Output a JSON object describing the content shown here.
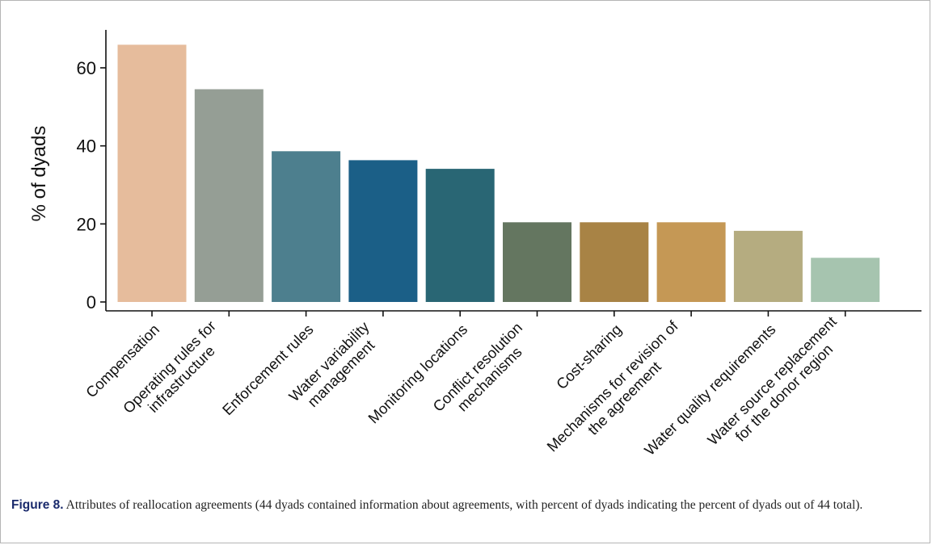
{
  "chart_data": {
    "type": "bar",
    "ylabel": "% of dyads",
    "xlabel": "",
    "ylim": [
      0,
      72
    ],
    "yticks": [
      0,
      20,
      40,
      60
    ],
    "grid": false,
    "categories": [
      [
        "Compensation"
      ],
      [
        "Operating rules for",
        "infrastructure"
      ],
      [
        "Enforcement rules"
      ],
      [
        "Water variability",
        "management"
      ],
      [
        "Monitoring locations"
      ],
      [
        "Conflict resolution",
        "mechanisms"
      ],
      [
        "Cost-sharing"
      ],
      [
        "Mechanisms for revision of",
        "the agreement"
      ],
      [
        "Water quality requirements"
      ],
      [
        "Water source replacement",
        "for the donor region"
      ]
    ],
    "values": [
      68.2,
      56.8,
      40.9,
      38.6,
      36.4,
      22.7,
      22.7,
      22.7,
      20.5,
      13.6
    ],
    "colors": [
      "#e6bc9c",
      "#959e95",
      "#4d7f8e",
      "#1b5f87",
      "#296674",
      "#647660",
      "#a88345",
      "#c59855",
      "#b5ac80",
      "#a6c4af"
    ]
  },
  "caption": {
    "label": "Figure 8.",
    "text": " Attributes of reallocation agreements (44 dyads contained information about agreements, with percent of dyads indicating the percent of dyads out of 44 total)."
  }
}
